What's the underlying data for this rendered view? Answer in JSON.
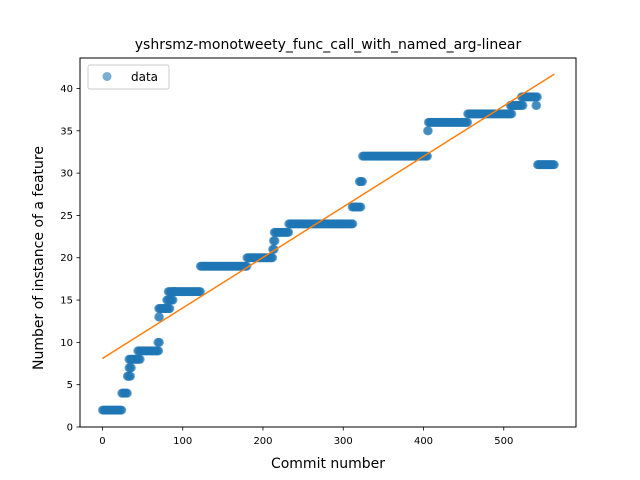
{
  "chart_data": {
    "type": "scatter",
    "title": "yshrsmz-monotweety_func_call_with_named_arg-linear",
    "xlabel": "Commit number",
    "ylabel": "Number of instance of a feature",
    "xlim": [
      -28,
      590
    ],
    "ylim": [
      0,
      43.6
    ],
    "xticks": [
      0,
      100,
      200,
      300,
      400,
      500
    ],
    "yticks": [
      0,
      5,
      10,
      15,
      20,
      25,
      30,
      35,
      40
    ],
    "grid": false,
    "legend": {
      "placement": "top-left",
      "entries": [
        "data"
      ]
    },
    "colors": {
      "data": "#1f77b4",
      "fit": "#ff7f0e"
    },
    "series": [
      {
        "name": "data",
        "kind": "points",
        "runs": [
          [
            0,
            24,
            2
          ],
          [
            24,
            31,
            4
          ],
          [
            31,
            35,
            6
          ],
          [
            33,
            36,
            7
          ],
          [
            33,
            47,
            8
          ],
          [
            44,
            70,
            9
          ],
          [
            69,
            71,
            10
          ],
          [
            70,
            71,
            13
          ],
          [
            70,
            84,
            14
          ],
          [
            80,
            88,
            15
          ],
          [
            82,
            90,
            16
          ],
          [
            88,
            122,
            16
          ],
          [
            122,
            180,
            19
          ],
          [
            180,
            212,
            20
          ],
          [
            212,
            214,
            21
          ],
          [
            213,
            215,
            22
          ],
          [
            214,
            232,
            23
          ],
          [
            232,
            312,
            24
          ],
          [
            311,
            322,
            26
          ],
          [
            320,
            324,
            29
          ],
          [
            324,
            405,
            32
          ],
          [
            405,
            406,
            35
          ],
          [
            406,
            455,
            36
          ],
          [
            455,
            510,
            37
          ],
          [
            508,
            524,
            38
          ],
          [
            522,
            542,
            39
          ],
          [
            540,
            541,
            38
          ],
          [
            542,
            563,
            31
          ]
        ]
      },
      {
        "name": "",
        "kind": "line",
        "x": [
          0,
          563
        ],
        "y": [
          8.1,
          41.7
        ]
      }
    ]
  }
}
